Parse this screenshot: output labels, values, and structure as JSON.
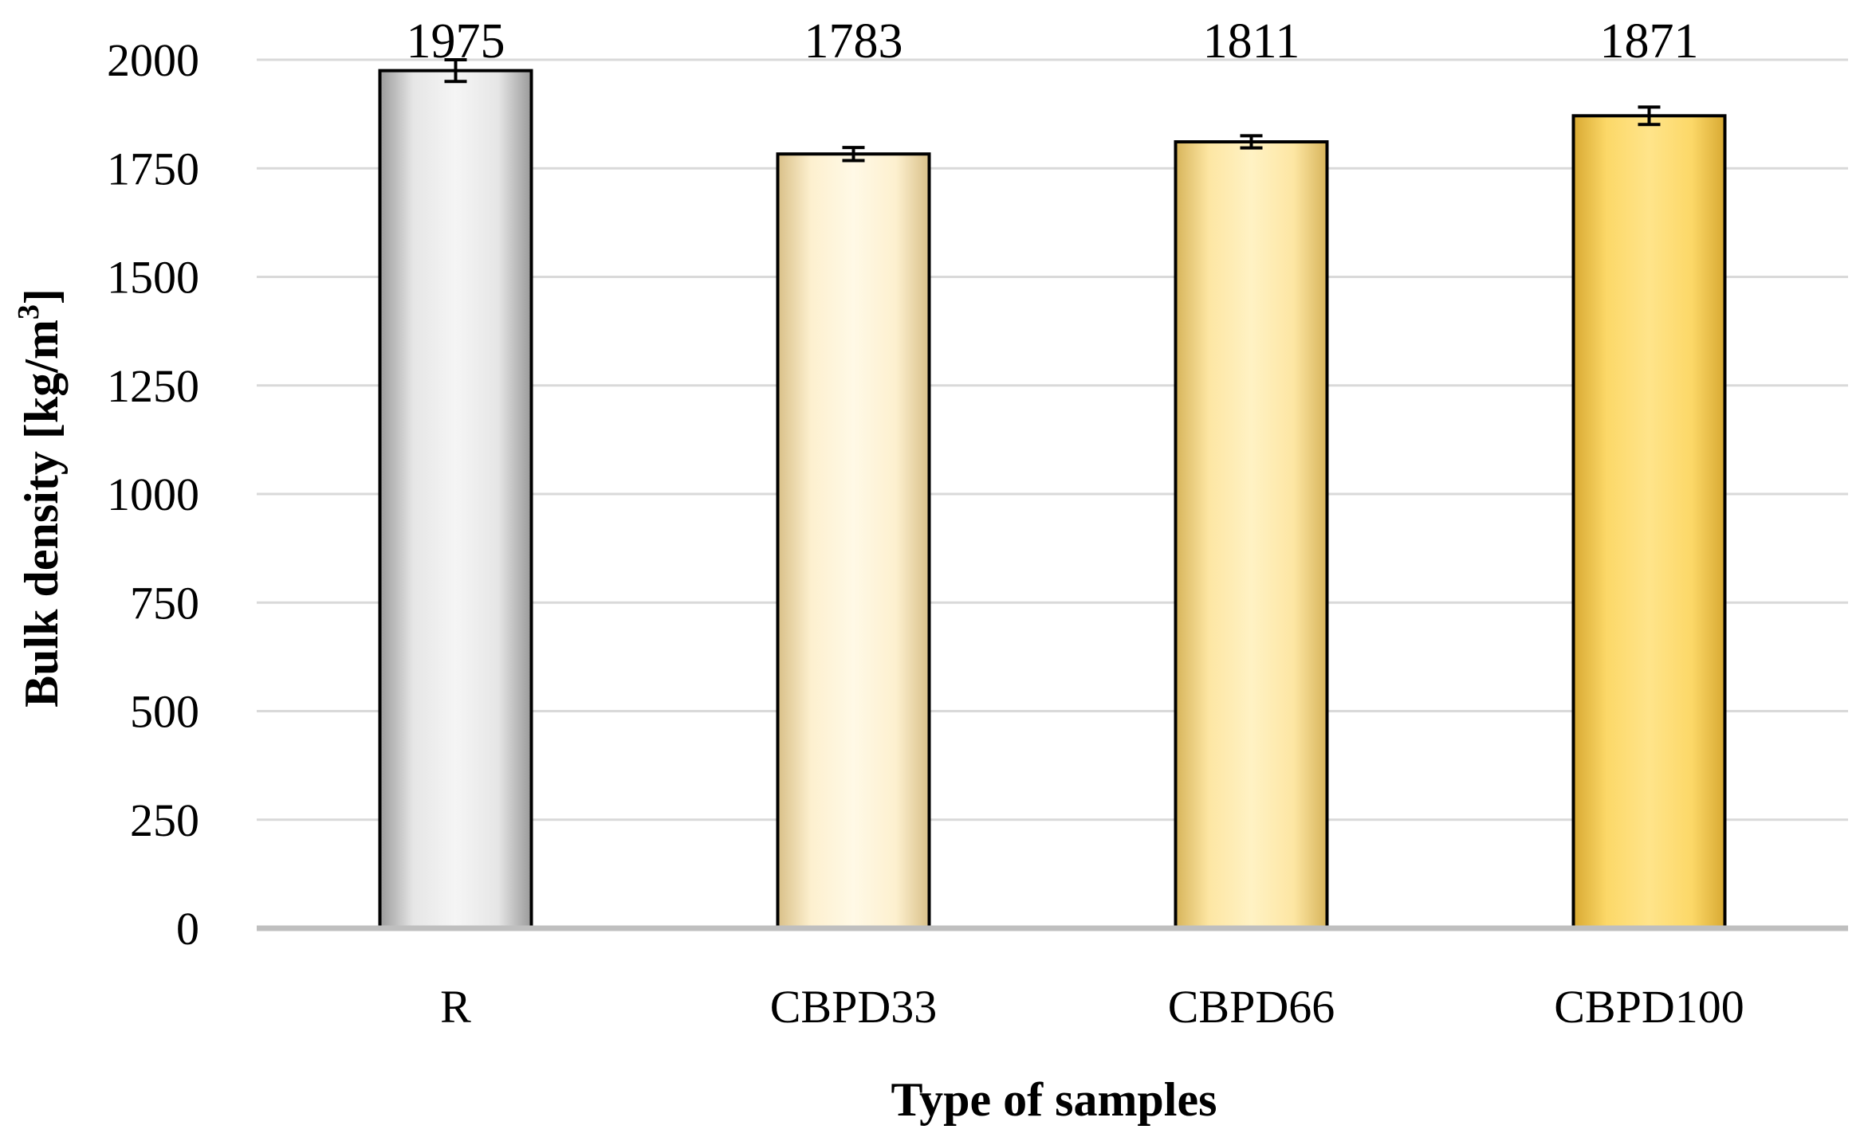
{
  "chart_data": {
    "type": "bar",
    "categories": [
      "R",
      "CBPD33",
      "CBPD66",
      "CBPD100"
    ],
    "values": [
      1975,
      1783,
      1811,
      1871
    ],
    "errors": [
      25,
      15,
      14,
      20
    ],
    "data_labels": [
      "1975",
      "1783",
      "1811",
      "1871"
    ],
    "title": "",
    "xlabel": "Type of samples",
    "ylabel_main": "Bulk density [kg/m",
    "ylabel_sup": "3",
    "ylabel_end": "]",
    "ylim": [
      0,
      2000
    ],
    "yticks": [
      0,
      250,
      500,
      750,
      1000,
      1250,
      1500,
      1750,
      2000
    ],
    "ytick_labels": [
      "0",
      "250",
      "500",
      "750",
      "1000",
      "1250",
      "1500",
      "1750",
      "2000"
    ],
    "grid": true,
    "legend": "none",
    "colors": {
      "R": {
        "light": "#f5f5f5",
        "mid": "#e6e6e6",
        "dark": "#9a9a9a"
      },
      "CBPD33": {
        "light": "#fff9e6",
        "mid": "#fdf0cf",
        "dark": "#d9c088"
      },
      "CBPD66": {
        "light": "#fff2c4",
        "mid": "#fde6a3",
        "dark": "#d7b45a"
      },
      "CBPD100": {
        "light": "#ffe48a",
        "mid": "#fcd868",
        "dark": "#d8a932"
      }
    }
  }
}
